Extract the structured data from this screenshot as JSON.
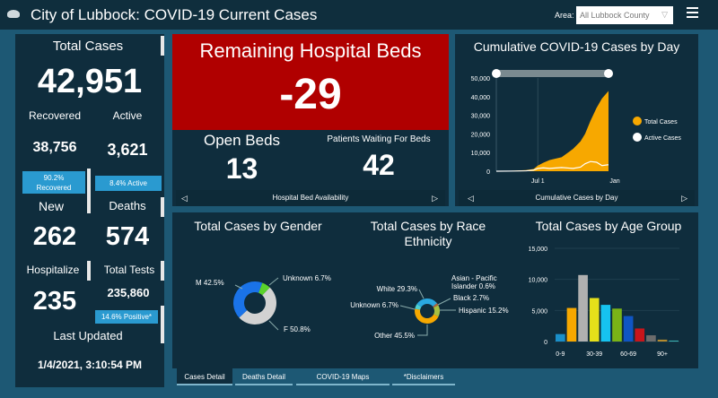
{
  "header": {
    "title": "City of Lubbock: COVID-19 Current Cases",
    "area_label": "Area:",
    "area_value": "All Lubbock County",
    "logo": "city-logo",
    "menu_icon": "hamburger-icon"
  },
  "summary": {
    "total_cases_label": "Total Cases",
    "total_cases": "42,951",
    "recovered_label": "Recovered",
    "recovered": "38,756",
    "recovered_badge_1": "90.2%",
    "recovered_badge_2": "Recovered",
    "active_label": "Active",
    "active": "3,621",
    "active_badge": "8.4% Active",
    "new_label": "New",
    "new": "262",
    "deaths_label": "Deaths",
    "deaths": "574",
    "hospitalized_label": "Hospitalize",
    "hospitalized": "235",
    "tests_label": "Total Tests",
    "tests": "235,860",
    "tests_badge": "14.6% Positive*",
    "updated_label": "Last Updated",
    "updated": "1/4/2021, 3:10:54 PM"
  },
  "beds": {
    "title": "Remaining Hospital Beds",
    "remaining": "-29",
    "open_label": "Open Beds",
    "open": "13",
    "waiting_label": "Patients Waiting For Beds",
    "waiting": "42",
    "footer": "Hospital Bed Availability",
    "alert_color": "#b00000"
  },
  "chart_data": [
    {
      "type": "area",
      "title": "Cumulative COVID-19 Cases by Day",
      "footer": "Cumulative Cases by Day",
      "x_ticks": [
        "Jul 1",
        "Jan"
      ],
      "y_ticks": [
        "0",
        "10,000",
        "20,000",
        "30,000",
        "40,000",
        "50,000"
      ],
      "ylim": [
        0,
        50000
      ],
      "x": [
        "2020-03-15",
        "2020-05-01",
        "2020-06-01",
        "2020-06-20",
        "2020-07-01",
        "2020-07-15",
        "2020-08-01",
        "2020-09-01",
        "2020-10-01",
        "2020-10-20",
        "2020-11-01",
        "2020-11-15",
        "2020-12-01",
        "2020-12-15",
        "2021-01-01"
      ],
      "series": [
        {
          "name": "Total Cases",
          "color": "#f7a800",
          "values": [
            0,
            300,
            600,
            1200,
            3000,
            4500,
            6000,
            7500,
            12000,
            16000,
            20000,
            27000,
            34000,
            39000,
            43000
          ]
        },
        {
          "name": "Active Cases",
          "color": "#ffffff",
          "values": [
            0,
            100,
            200,
            600,
            1500,
            1800,
            1500,
            2000,
            1500,
            2200,
            4000,
            5200,
            4800,
            3000,
            3500
          ]
        }
      ],
      "legend": "right"
    },
    {
      "type": "pie",
      "title": "Total Cases by Gender",
      "slices": [
        {
          "label": "Unknown 6.7%",
          "value": 6.7,
          "color": "#5bd22b"
        },
        {
          "label": "F 50.8%",
          "value": 50.8,
          "color": "#d2d2d2"
        },
        {
          "label": "M 42.5%",
          "value": 42.5,
          "color": "#1a73e8"
        }
      ]
    },
    {
      "type": "pie",
      "title": "Total Cases by Race Ethnicity",
      "slices": [
        {
          "label": "Asian - Pacific Islander 0.6%",
          "value": 0.6,
          "color": "#9a9a9a"
        },
        {
          "label": "Black 2.7%",
          "value": 2.7,
          "color": "#b0603c"
        },
        {
          "label": "Hispanic 15.2%",
          "value": 15.2,
          "color": "#a8c040"
        },
        {
          "label": "Other 45.5%",
          "value": 45.5,
          "color": "#f7a800"
        },
        {
          "label": "Unknown 6.7%",
          "value": 6.7,
          "color": "#4fd0d0"
        },
        {
          "label": "White 29.3%",
          "value": 29.3,
          "color": "#2aa8e0"
        }
      ]
    },
    {
      "type": "bar",
      "title": "Total Cases by Age Group",
      "x_ticks": [
        "0-9",
        "30-39",
        "60-69",
        "90+"
      ],
      "y_ticks": [
        "0",
        "5,000",
        "10,000",
        "15,000"
      ],
      "ylim": [
        0,
        15000
      ],
      "values": [
        1200,
        5400,
        10700,
        7000,
        5900,
        5300,
        4100,
        2100,
        1000,
        300,
        150
      ],
      "colors": [
        "#1a8fc9",
        "#f7a800",
        "#b0b0b0",
        "#e6e01a",
        "#16c3f0",
        "#7ab317",
        "#0f55c4",
        "#c8151b",
        "#6c6c6c",
        "#b38a2f",
        "#3cb4b4"
      ]
    }
  ],
  "tabs": [
    {
      "label": "Cases Detail",
      "active": true
    },
    {
      "label": "Deaths Detail"
    },
    {
      "label": "COVID-19 Maps"
    },
    {
      "label": "*Disclaimers"
    }
  ]
}
